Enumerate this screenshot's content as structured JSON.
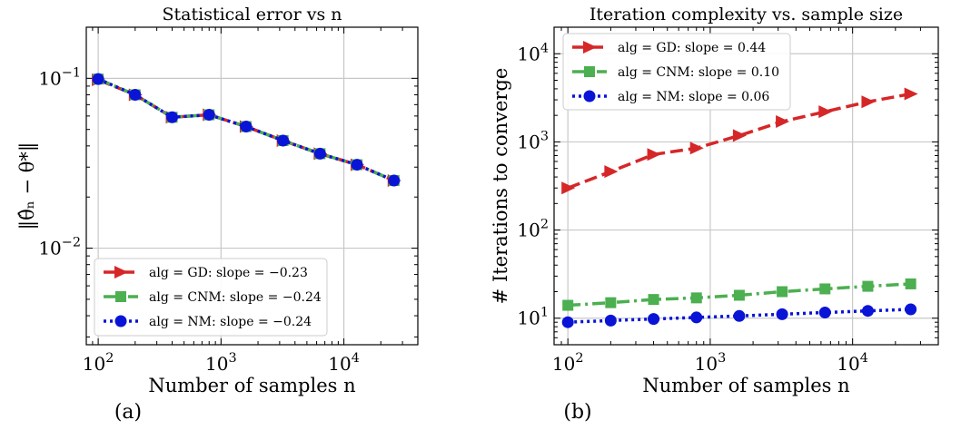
{
  "figure_labels": [
    "(a)",
    "(b)"
  ],
  "colors": {
    "GD": "#d62728",
    "CNM": "#4caf50",
    "NM": "#0a14d6",
    "grid": "#c8c8c8"
  },
  "chart_data": [
    {
      "type": "line",
      "title": "Statistical error vs n",
      "title_math": "n",
      "xlabel": "Number of samples n",
      "ylabel": "‖θ̂ₙ − θ*‖",
      "xscale": "log",
      "yscale": "log",
      "xlim": [
        80,
        40000
      ],
      "ylim": [
        0.0027,
        0.2
      ],
      "xticks": [
        100,
        1000,
        10000
      ],
      "xtick_labels": [
        "10²",
        "10³",
        "10⁴"
      ],
      "yticks": [
        0.01,
        0.1
      ],
      "ytick_labels": [
        "10⁻²",
        "10⁻¹"
      ],
      "grid": true,
      "legend_position": "lower-left",
      "x": [
        100,
        200,
        400,
        800,
        1600,
        3200,
        6400,
        12800,
        25600
      ],
      "series": [
        {
          "name": "alg = GD: slope = −0.23",
          "key": "GD",
          "style": "dashed",
          "marker": "triangle-right",
          "values": [
            0.098,
            0.08,
            0.059,
            0.061,
            0.052,
            0.043,
            0.036,
            0.031,
            0.025
          ]
        },
        {
          "name": "alg = CNM: slope = −0.24",
          "key": "CNM",
          "style": "dashdot",
          "marker": "square",
          "values": [
            0.099,
            0.08,
            0.059,
            0.061,
            0.052,
            0.043,
            0.036,
            0.031,
            0.025
          ]
        },
        {
          "name": "alg = NM: slope = −0.24",
          "key": "NM",
          "style": "dotted",
          "marker": "circle",
          "values": [
            0.099,
            0.08,
            0.059,
            0.061,
            0.052,
            0.043,
            0.036,
            0.031,
            0.025
          ]
        }
      ]
    },
    {
      "type": "line",
      "title": "Iteration complexity vs. sample size",
      "xlabel": "Number of samples n",
      "ylabel": "# Iterations to converge",
      "xscale": "log",
      "yscale": "log",
      "xlim": [
        80,
        40000
      ],
      "ylim": [
        5,
        20000
      ],
      "xticks": [
        100,
        1000,
        10000
      ],
      "xtick_labels": [
        "10²",
        "10³",
        "10⁴"
      ],
      "yticks": [
        10,
        100,
        1000,
        10000
      ],
      "ytick_labels": [
        "10¹",
        "10²",
        "10³",
        "10⁴"
      ],
      "grid": true,
      "legend_position": "top-left",
      "x": [
        100,
        200,
        400,
        800,
        1600,
        3200,
        6400,
        12800,
        25600
      ],
      "series": [
        {
          "name": "alg = GD: slope = 0.44",
          "key": "GD",
          "style": "dashed",
          "marker": "triangle-right",
          "values": [
            300,
            460,
            720,
            850,
            1180,
            1700,
            2200,
            2850,
            3500
          ]
        },
        {
          "name": "alg = CNM: slope = 0.10",
          "key": "CNM",
          "style": "dashdot",
          "marker": "square",
          "values": [
            14,
            15,
            16.3,
            17,
            18.2,
            20,
            21.5,
            23,
            24.5
          ]
        },
        {
          "name": "alg = NM: slope = 0.06",
          "key": "NM",
          "style": "dotted",
          "marker": "circle",
          "values": [
            9,
            9.4,
            9.8,
            10.2,
            10.6,
            11.1,
            11.6,
            12.1,
            12.6
          ]
        }
      ]
    }
  ]
}
